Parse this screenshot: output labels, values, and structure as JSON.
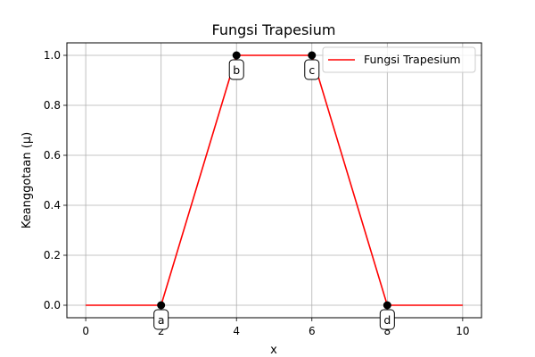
{
  "chart_data": {
    "type": "line",
    "title": "Fungsi Trapesium",
    "xlabel": "x",
    "ylabel": "Keanggotaan (μ)",
    "xlim": [
      -0.5,
      10.5
    ],
    "ylim": [
      -0.05,
      1.05
    ],
    "xticks": [
      0,
      2,
      4,
      6,
      8,
      10
    ],
    "yticks": [
      0.0,
      0.2,
      0.4,
      0.6,
      0.8,
      1.0
    ],
    "xtick_labels": [
      "0",
      "2",
      "4",
      "6",
      "8",
      "10"
    ],
    "ytick_labels": [
      "0.0",
      "0.2",
      "0.4",
      "0.6",
      "0.8",
      "1.0"
    ],
    "grid": true,
    "legend_position": "top-right",
    "series": [
      {
        "name": "Fungsi Trapesium",
        "color": "#ff0000",
        "x": [
          0,
          2,
          4,
          6,
          8,
          10
        ],
        "y": [
          0,
          0,
          1,
          1,
          0,
          0
        ]
      }
    ],
    "points": [
      {
        "label": "a",
        "x": 2,
        "y": 0,
        "label_side": "below"
      },
      {
        "label": "b",
        "x": 4,
        "y": 1,
        "label_side": "below"
      },
      {
        "label": "c",
        "x": 6,
        "y": 1,
        "label_side": "below"
      },
      {
        "label": "d",
        "x": 8,
        "y": 0,
        "label_side": "below"
      }
    ],
    "point_color": "#000000"
  }
}
